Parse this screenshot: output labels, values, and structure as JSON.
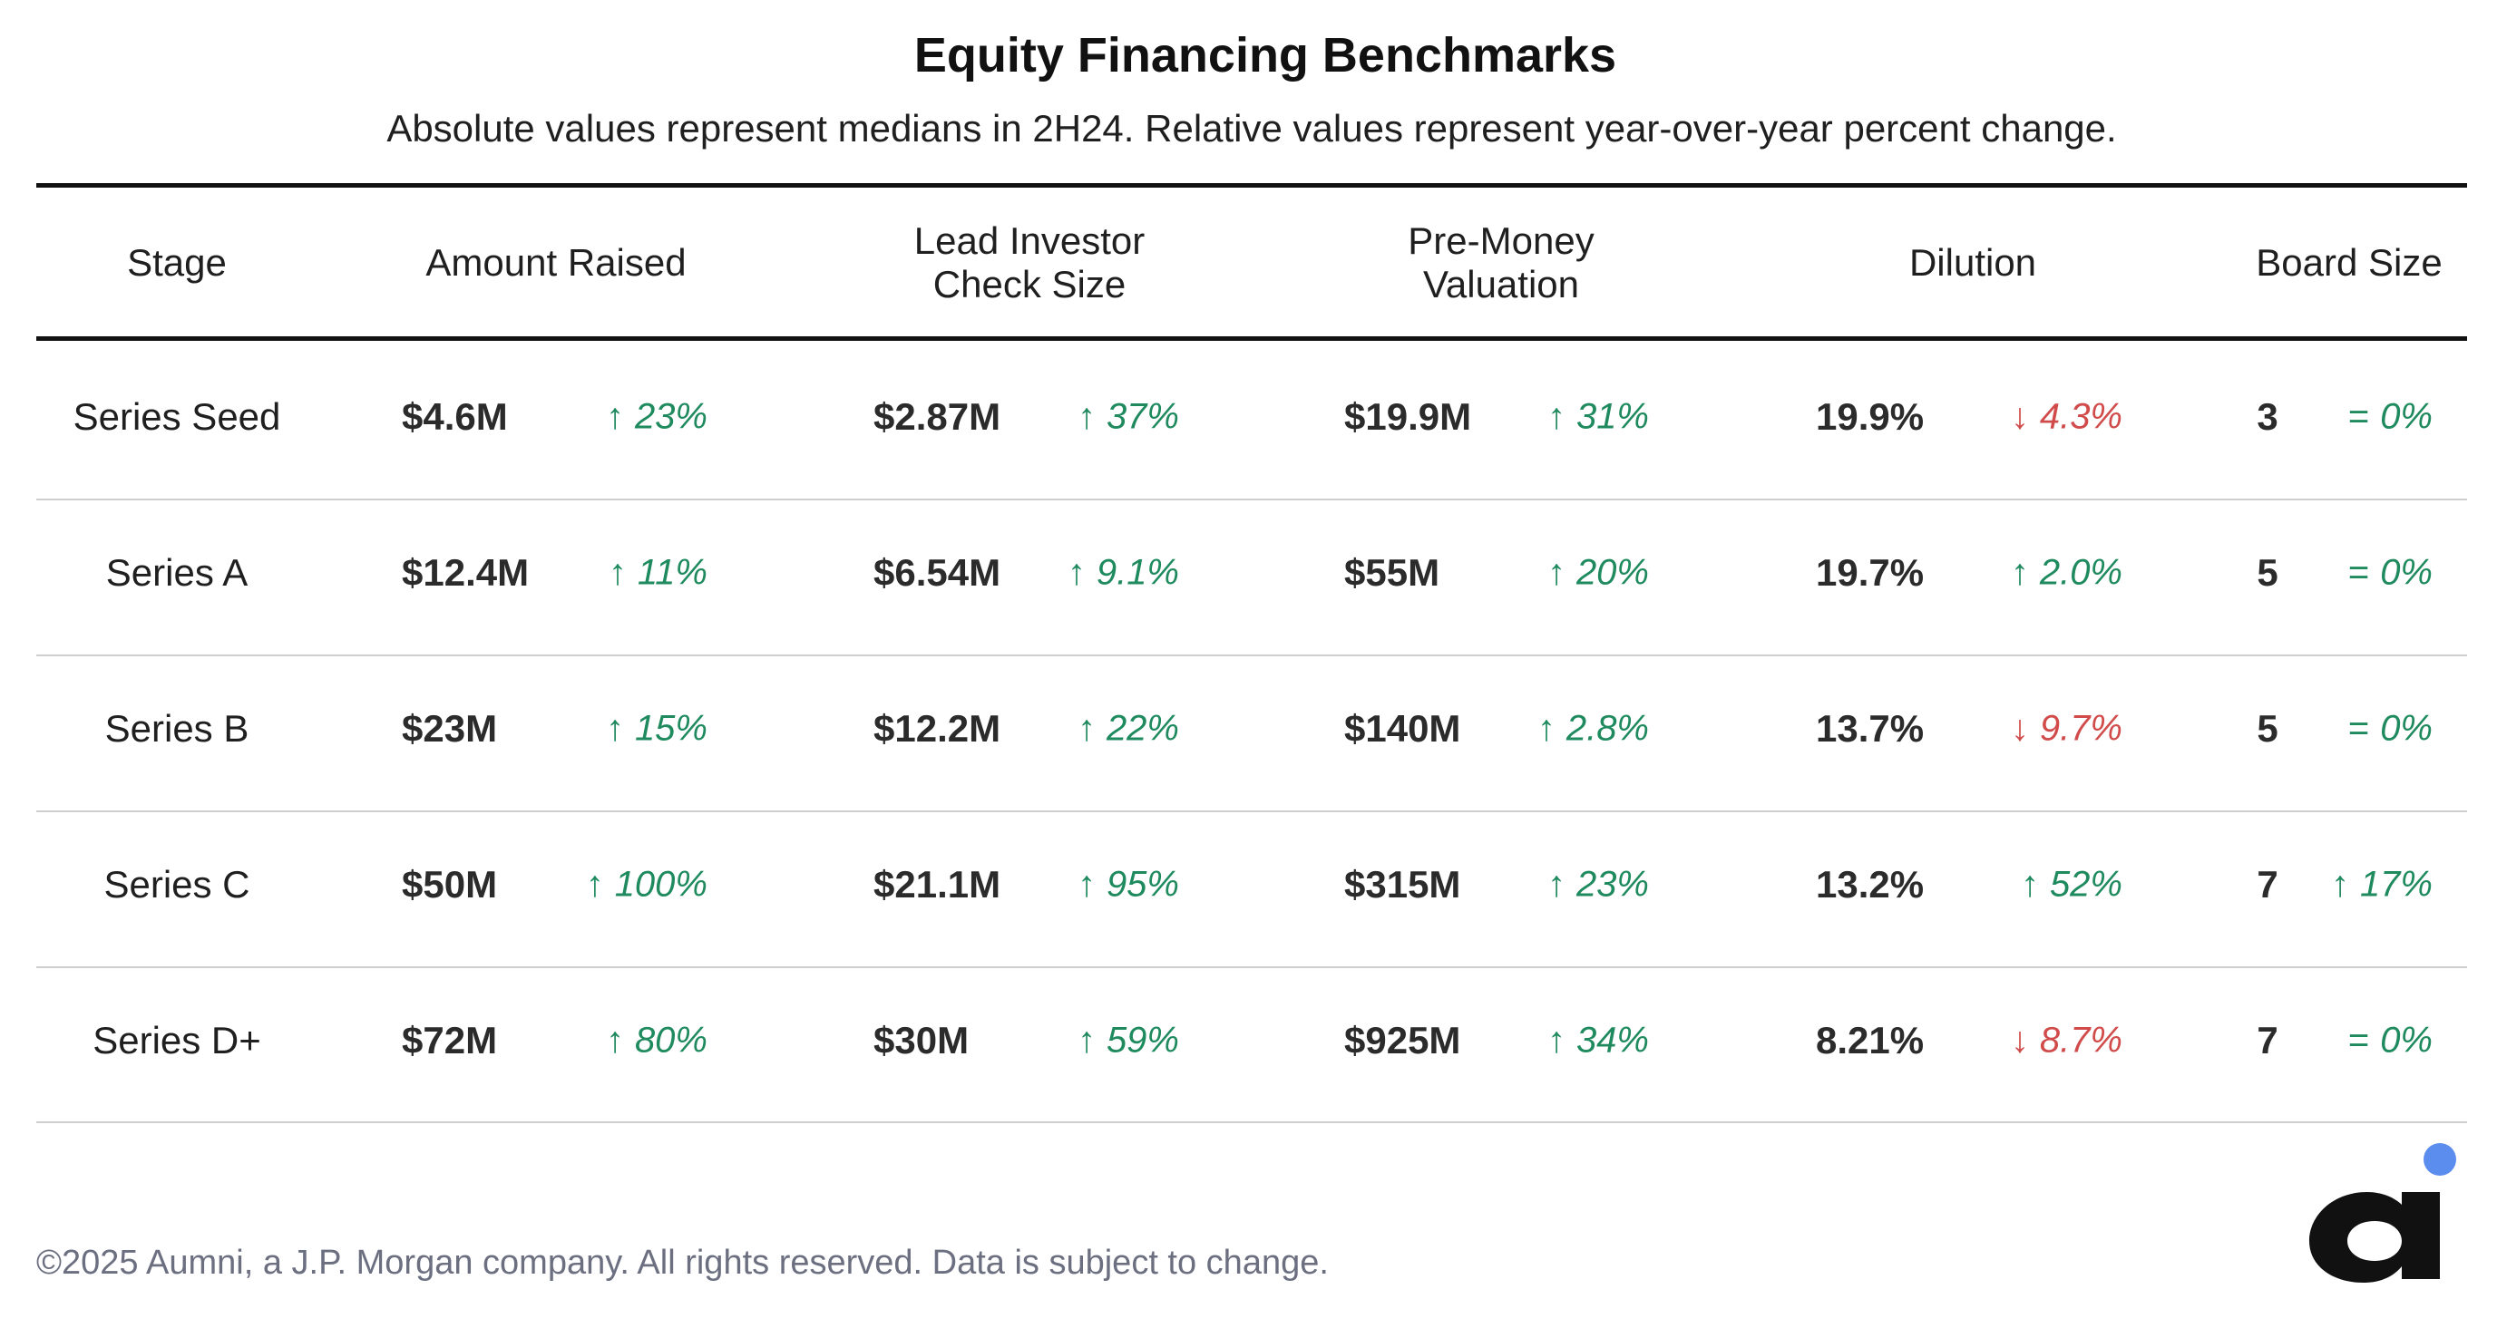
{
  "title": "Equity Financing Benchmarks",
  "subtitle": "Absolute values represent medians in 2H24. Relative values represent year-over-year percent change.",
  "footer": "©2025 Aumni, a J.P. Morgan company. All rights reserved. Data is subject to change.",
  "logo": {
    "icon": "aumni-logo-icon",
    "dot_color": "#5b8def",
    "letter_color": "#111111"
  },
  "colors": {
    "up": "#1e8a5e",
    "down": "#d14b4b",
    "neutral": "#1e8a5e",
    "rule": "#111111",
    "row_line": "#cfcfcf"
  },
  "icons": {
    "up": "↑",
    "down": "↓",
    "eq": "="
  },
  "chart_data": {
    "type": "table",
    "columns": [
      "Stage",
      "Amount Raised",
      "Lead Investor Check Size",
      "Pre-Money Valuation",
      "Dilution",
      "Board Size"
    ],
    "headers": {
      "stage": [
        "Stage"
      ],
      "amount": [
        "Amount Raised"
      ],
      "lead": [
        "Lead Investor",
        "Check Size"
      ],
      "premoney": [
        "Pre-Money",
        "Valuation"
      ],
      "dilution": [
        "Dilution"
      ],
      "board": [
        "Board Size"
      ]
    },
    "rows": [
      {
        "stage": "Series Seed",
        "amount": {
          "value": "$4.6M",
          "dir": "up",
          "change": "23%"
        },
        "lead": {
          "value": "$2.87M",
          "dir": "up",
          "change": "37%"
        },
        "premoney": {
          "value": "$19.9M",
          "dir": "up",
          "change": "31%"
        },
        "dilution": {
          "value": "19.9%",
          "dir": "down",
          "change": "4.3%"
        },
        "board": {
          "value": "3",
          "dir": "eq",
          "change": "0%"
        }
      },
      {
        "stage": "Series A",
        "amount": {
          "value": "$12.4M",
          "dir": "up",
          "change": "11%"
        },
        "lead": {
          "value": "$6.54M",
          "dir": "up",
          "change": "9.1%"
        },
        "premoney": {
          "value": "$55M",
          "dir": "up",
          "change": "20%"
        },
        "dilution": {
          "value": "19.7%",
          "dir": "up",
          "change": "2.0%"
        },
        "board": {
          "value": "5",
          "dir": "eq",
          "change": "0%"
        }
      },
      {
        "stage": "Series B",
        "amount": {
          "value": "$23M",
          "dir": "up",
          "change": "15%"
        },
        "lead": {
          "value": "$12.2M",
          "dir": "up",
          "change": "22%"
        },
        "premoney": {
          "value": "$140M",
          "dir": "up",
          "change": "2.8%"
        },
        "dilution": {
          "value": "13.7%",
          "dir": "down",
          "change": "9.7%"
        },
        "board": {
          "value": "5",
          "dir": "eq",
          "change": "0%"
        }
      },
      {
        "stage": "Series C",
        "amount": {
          "value": "$50M",
          "dir": "up",
          "change": "100%"
        },
        "lead": {
          "value": "$21.1M",
          "dir": "up",
          "change": "95%"
        },
        "premoney": {
          "value": "$315M",
          "dir": "up",
          "change": "23%"
        },
        "dilution": {
          "value": "13.2%",
          "dir": "up",
          "change": "52%"
        },
        "board": {
          "value": "7",
          "dir": "up",
          "change": "17%"
        }
      },
      {
        "stage": "Series D+",
        "amount": {
          "value": "$72M",
          "dir": "up",
          "change": "80%"
        },
        "lead": {
          "value": "$30M",
          "dir": "up",
          "change": "59%"
        },
        "premoney": {
          "value": "$925M",
          "dir": "up",
          "change": "34%"
        },
        "dilution": {
          "value": "8.21%",
          "dir": "down",
          "change": "8.7%"
        },
        "board": {
          "value": "7",
          "dir": "eq",
          "change": "0%"
        }
      }
    ]
  }
}
